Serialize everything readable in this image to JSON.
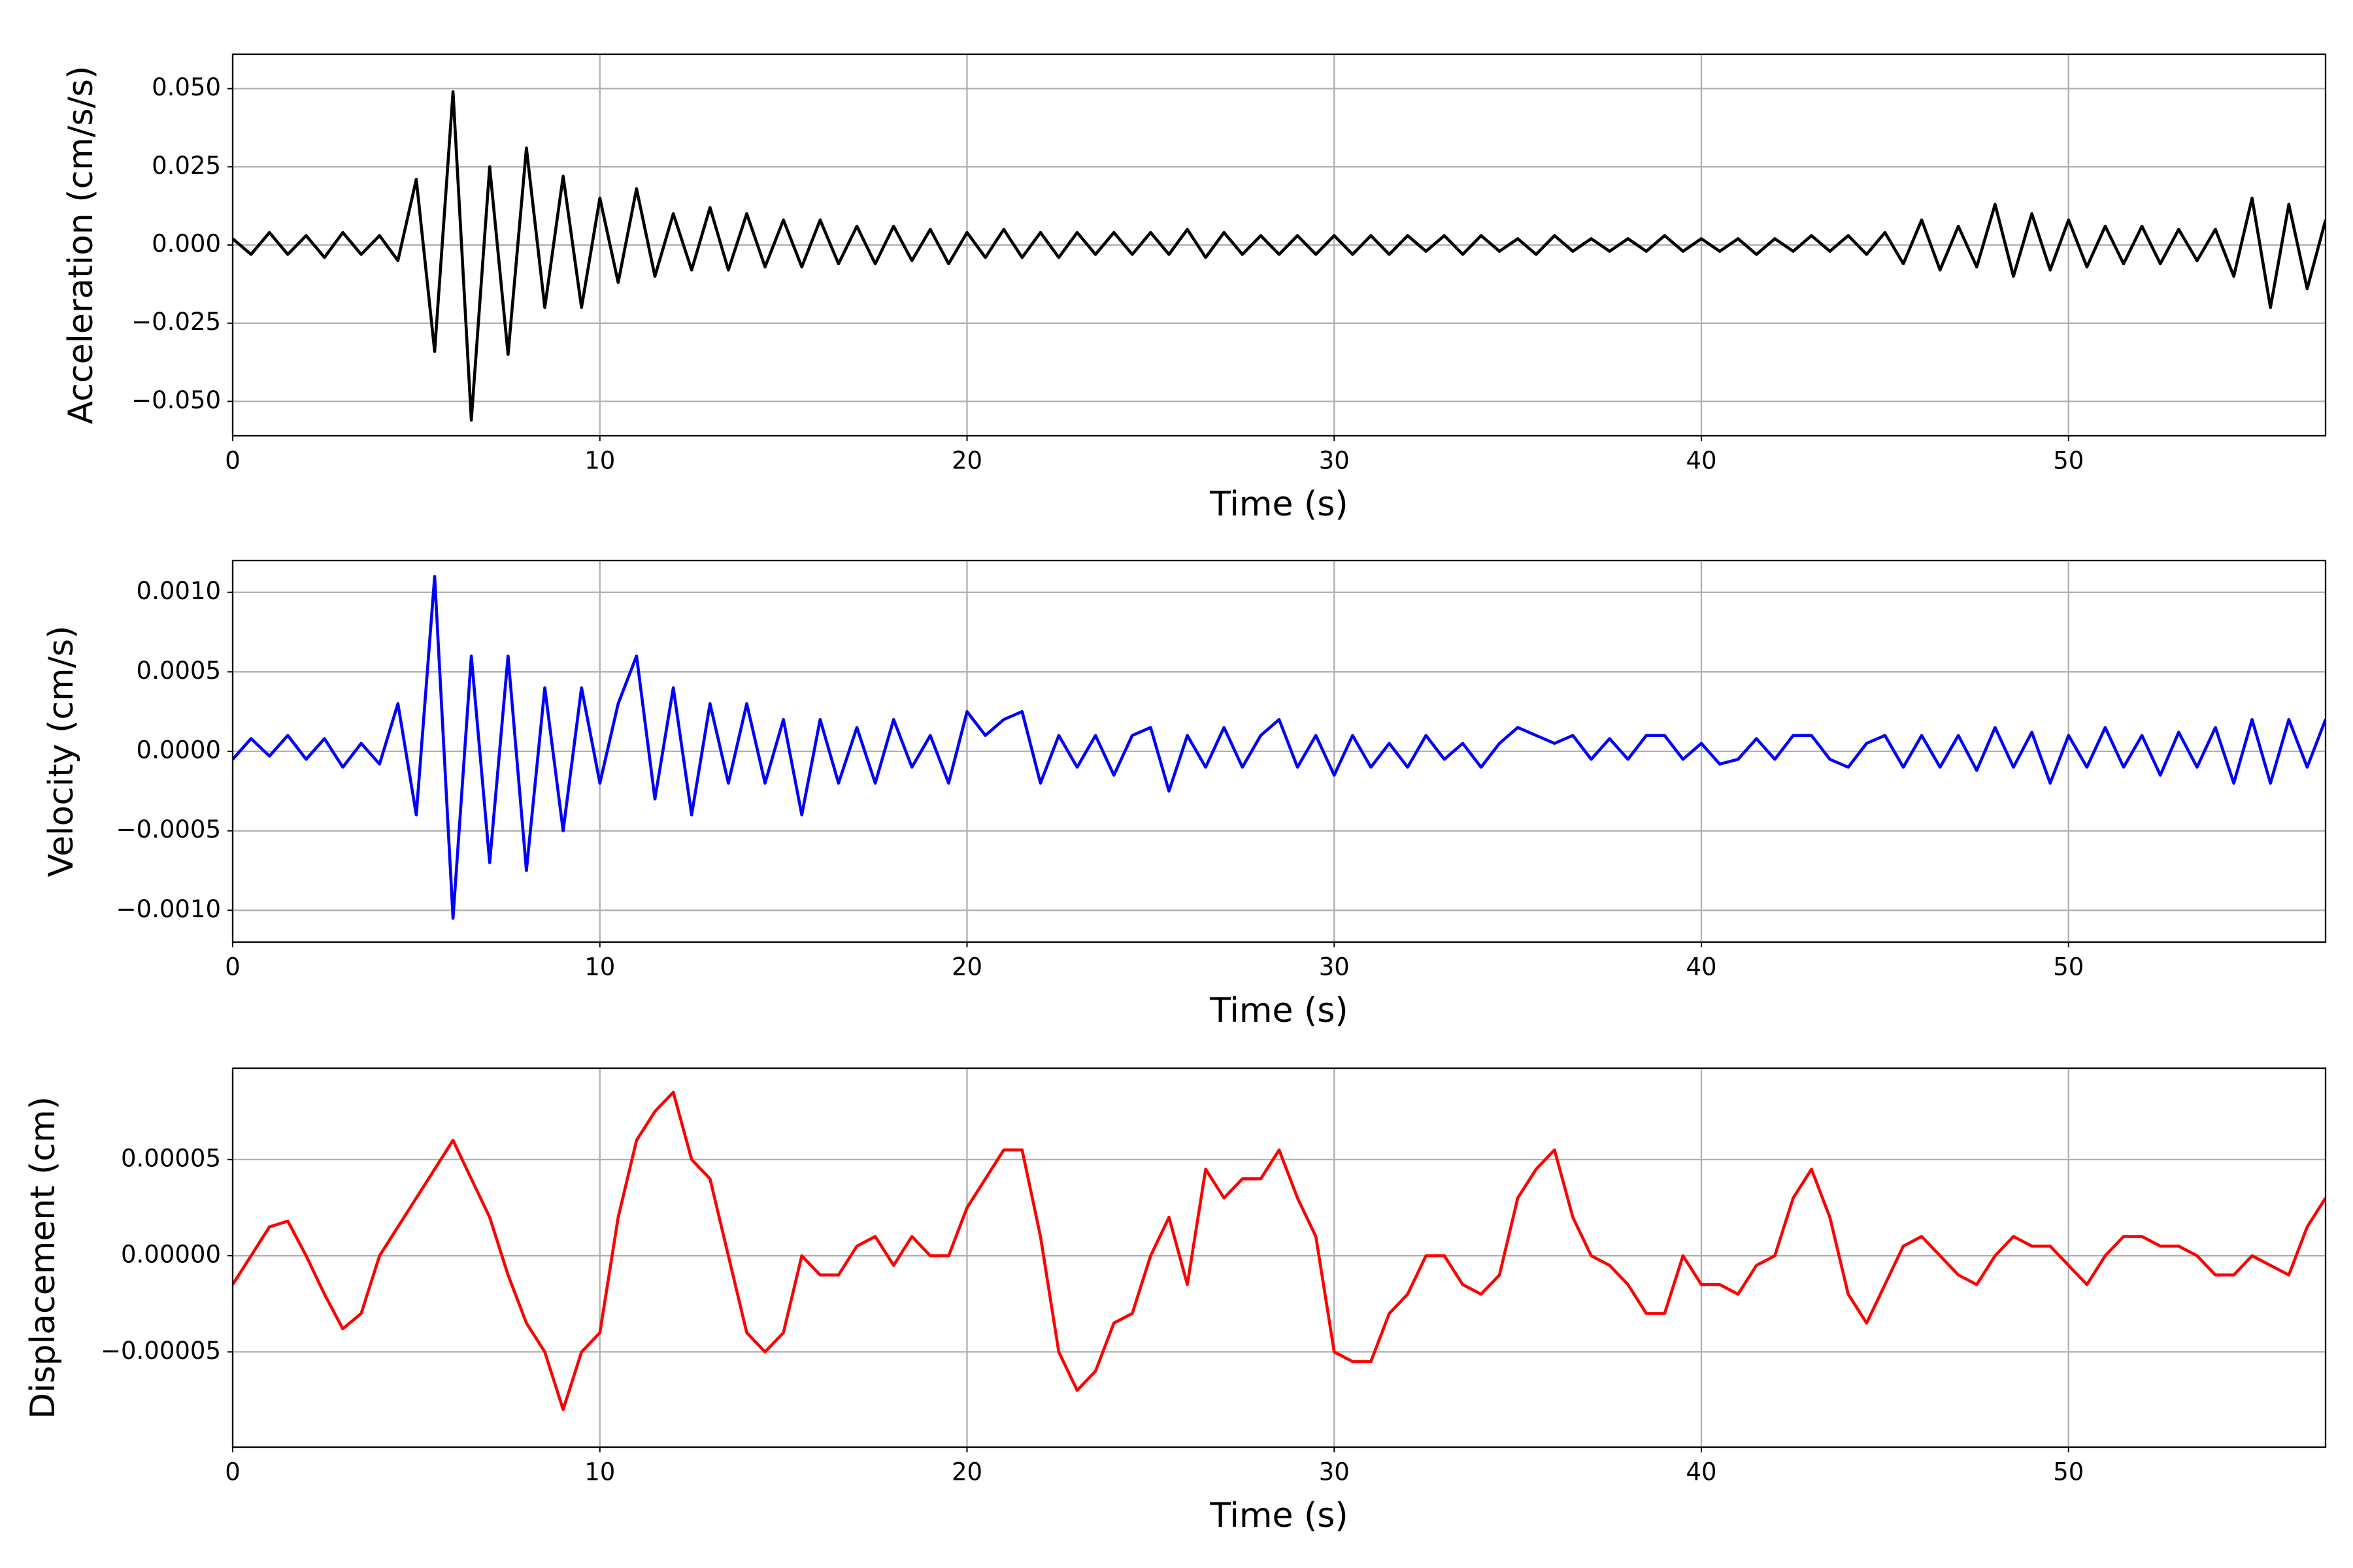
{
  "chart_data": [
    {
      "type": "line",
      "ylabel": "Acceleration (cm/s/s)",
      "xlabel": "Time (s)",
      "color": "#000000",
      "grid": true,
      "xlim": [
        0,
        57
      ],
      "xticks": [
        0,
        10,
        20,
        30,
        40,
        50
      ],
      "ylim": [
        -0.061,
        0.061
      ],
      "yticks": [
        {
          "value": -0.05,
          "label": "−0.050"
        },
        {
          "value": -0.025,
          "label": "−0.025"
        },
        {
          "value": 0,
          "label": "0.000"
        },
        {
          "value": 0.025,
          "label": "0.025"
        },
        {
          "value": 0.05,
          "label": "0.050"
        }
      ],
      "x": [
        0,
        0.5,
        1,
        1.5,
        2,
        2.5,
        3,
        3.5,
        4,
        4.5,
        5,
        5.5,
        6,
        6.5,
        7,
        7.5,
        8,
        8.5,
        9,
        9.5,
        10,
        10.5,
        11,
        11.5,
        12,
        12.5,
        13,
        13.5,
        14,
        14.5,
        15,
        15.5,
        16,
        16.5,
        17,
        17.5,
        18,
        18.5,
        19,
        19.5,
        20,
        20.5,
        21,
        21.5,
        22,
        22.5,
        23,
        23.5,
        24,
        24.5,
        25,
        25.5,
        26,
        26.5,
        27,
        27.5,
        28,
        28.5,
        29,
        29.5,
        30,
        30.5,
        31,
        31.5,
        32,
        32.5,
        33,
        33.5,
        34,
        34.5,
        35,
        35.5,
        36,
        36.5,
        37,
        37.5,
        38,
        38.5,
        39,
        39.5,
        40,
        40.5,
        41,
        41.5,
        42,
        42.5,
        43,
        43.5,
        44,
        44.5,
        45,
        45.5,
        46,
        46.5,
        47,
        47.5,
        48,
        48.5,
        49,
        49.5,
        50,
        50.5,
        51,
        51.5,
        52,
        52.5,
        53,
        53.5,
        54,
        54.5,
        55,
        55.5,
        56,
        56.5,
        57
      ],
      "values": [
        0.002,
        -0.003,
        0.004,
        -0.003,
        0.003,
        -0.004,
        0.004,
        -0.003,
        0.003,
        -0.005,
        0.021,
        -0.034,
        0.049,
        -0.056,
        0.025,
        -0.035,
        0.031,
        -0.02,
        0.022,
        -0.02,
        0.015,
        -0.012,
        0.018,
        -0.01,
        0.01,
        -0.008,
        0.012,
        -0.008,
        0.01,
        -0.007,
        0.008,
        -0.007,
        0.008,
        -0.006,
        0.006,
        -0.006,
        0.006,
        -0.005,
        0.005,
        -0.006,
        0.004,
        -0.004,
        0.005,
        -0.004,
        0.004,
        -0.004,
        0.004,
        -0.003,
        0.004,
        -0.003,
        0.004,
        -0.003,
        0.005,
        -0.004,
        0.004,
        -0.003,
        0.003,
        -0.003,
        0.003,
        -0.003,
        0.003,
        -0.003,
        0.003,
        -0.003,
        0.003,
        -0.002,
        0.003,
        -0.003,
        0.003,
        -0.002,
        0.002,
        -0.003,
        0.003,
        -0.002,
        0.002,
        -0.002,
        0.002,
        -0.002,
        0.003,
        -0.002,
        0.002,
        -0.002,
        0.002,
        -0.003,
        0.002,
        -0.002,
        0.003,
        -0.002,
        0.003,
        -0.003,
        0.004,
        -0.006,
        0.008,
        -0.008,
        0.006,
        -0.007,
        0.013,
        -0.01,
        0.01,
        -0.008,
        0.008,
        -0.007,
        0.006,
        -0.006,
        0.006,
        -0.006,
        0.005,
        -0.005,
        0.005,
        -0.01,
        0.015,
        -0.02,
        0.013,
        -0.014,
        0.008
      ]
    },
    {
      "type": "line",
      "ylabel": "Velocity (cm/s)",
      "xlabel": "Time (s)",
      "color": "#0000ff",
      "grid": true,
      "xlim": [
        0,
        57
      ],
      "xticks": [
        0,
        10,
        20,
        30,
        40,
        50
      ],
      "ylim": [
        -0.0012,
        0.0012
      ],
      "yticks": [
        {
          "value": -0.001,
          "label": "−0.0010"
        },
        {
          "value": -0.0005,
          "label": "−0.0005"
        },
        {
          "value": 0,
          "label": "0.0000"
        },
        {
          "value": 0.0005,
          "label": "0.0005"
        },
        {
          "value": 0.001,
          "label": "0.0010"
        }
      ],
      "x": [
        0,
        0.5,
        1,
        1.5,
        2,
        2.5,
        3,
        3.5,
        4,
        4.5,
        5,
        5.5,
        6,
        6.5,
        7,
        7.5,
        8,
        8.5,
        9,
        9.5,
        10,
        10.5,
        11,
        11.5,
        12,
        12.5,
        13,
        13.5,
        14,
        14.5,
        15,
        15.5,
        16,
        16.5,
        17,
        17.5,
        18,
        18.5,
        19,
        19.5,
        20,
        20.5,
        21,
        21.5,
        22,
        22.5,
        23,
        23.5,
        24,
        24.5,
        25,
        25.5,
        26,
        26.5,
        27,
        27.5,
        28,
        28.5,
        29,
        29.5,
        30,
        30.5,
        31,
        31.5,
        32,
        32.5,
        33,
        33.5,
        34,
        34.5,
        35,
        35.5,
        36,
        36.5,
        37,
        37.5,
        38,
        38.5,
        39,
        39.5,
        40,
        40.5,
        41,
        41.5,
        42,
        42.5,
        43,
        43.5,
        44,
        44.5,
        45,
        45.5,
        46,
        46.5,
        47,
        47.5,
        48,
        48.5,
        49,
        49.5,
        50,
        50.5,
        51,
        51.5,
        52,
        52.5,
        53,
        53.5,
        54,
        54.5,
        55,
        55.5,
        56,
        56.5,
        57
      ],
      "values": [
        -5e-05,
        8e-05,
        -3e-05,
        0.0001,
        -5e-05,
        8e-05,
        -0.0001,
        5e-05,
        -8e-05,
        0.0003,
        -0.0004,
        0.0011,
        -0.00105,
        0.0006,
        -0.0007,
        0.0006,
        -0.00075,
        0.0004,
        -0.0005,
        0.0004,
        -0.0002,
        0.0003,
        0.0006,
        -0.0003,
        0.0004,
        -0.0004,
        0.0003,
        -0.0002,
        0.0003,
        -0.0002,
        0.0002,
        -0.0004,
        0.0002,
        -0.0002,
        0.00015,
        -0.0002,
        0.0002,
        -0.0001,
        0.0001,
        -0.0002,
        0.00025,
        0.0001,
        0.0002,
        0.00025,
        -0.0002,
        0.0001,
        -0.0001,
        0.0001,
        -0.00015,
        0.0001,
        0.00015,
        -0.00025,
        0.0001,
        -0.0001,
        0.00015,
        -0.0001,
        0.0001,
        0.0002,
        -0.0001,
        0.0001,
        -0.00015,
        0.0001,
        -0.0001,
        5e-05,
        -0.0001,
        0.0001,
        -5e-05,
        5e-05,
        -0.0001,
        5e-05,
        0.00015,
        0.0001,
        5e-05,
        0.0001,
        -5e-05,
        8e-05,
        -5e-05,
        0.0001,
        0.0001,
        -5e-05,
        5e-05,
        -8e-05,
        -5e-05,
        8e-05,
        -5e-05,
        0.0001,
        0.0001,
        -5e-05,
        -0.0001,
        5e-05,
        0.0001,
        -0.0001,
        0.0001,
        -0.0001,
        0.0001,
        -0.00012,
        0.00015,
        -0.0001,
        0.00012,
        -0.0002,
        0.0001,
        -0.0001,
        0.00015,
        -0.0001,
        0.0001,
        -0.00015,
        0.00012,
        -0.0001,
        0.00015,
        -0.0002,
        0.0002,
        -0.0002,
        0.0002,
        -0.0001,
        0.0002
      ]
    },
    {
      "type": "line",
      "ylabel": "Displacement (cm)",
      "xlabel": "Time (s)",
      "color": "#ff0000",
      "grid": true,
      "xlim": [
        0,
        57
      ],
      "xticks": [
        0,
        10,
        20,
        30,
        40,
        50
      ],
      "ylim": [
        -9.95e-05,
        9.75e-05
      ],
      "yticks": [
        {
          "value": -5e-05,
          "label": "−0.00005"
        },
        {
          "value": 0,
          "label": "0.00000"
        },
        {
          "value": 5e-05,
          "label": "0.00005"
        }
      ],
      "x": [
        0,
        0.5,
        1,
        1.5,
        2,
        2.5,
        3,
        3.5,
        4,
        4.5,
        5,
        5.5,
        6,
        6.5,
        7,
        7.5,
        8,
        8.5,
        9,
        9.5,
        10,
        10.5,
        11,
        11.5,
        12,
        12.5,
        13,
        13.5,
        14,
        14.5,
        15,
        15.5,
        16,
        16.5,
        17,
        17.5,
        18,
        18.5,
        19,
        19.5,
        20,
        20.5,
        21,
        21.5,
        22,
        22.5,
        23,
        23.5,
        24,
        24.5,
        25,
        25.5,
        26,
        26.5,
        27,
        27.5,
        28,
        28.5,
        29,
        29.5,
        30,
        30.5,
        31,
        31.5,
        32,
        32.5,
        33,
        33.5,
        34,
        34.5,
        35,
        35.5,
        36,
        36.5,
        37,
        37.5,
        38,
        38.5,
        39,
        39.5,
        40,
        40.5,
        41,
        41.5,
        42,
        42.5,
        43,
        43.5,
        44,
        44.5,
        45,
        45.5,
        46,
        46.5,
        47,
        47.5,
        48,
        48.5,
        49,
        49.5,
        50,
        50.5,
        51,
        51.5,
        52,
        52.5,
        53,
        53.5,
        54,
        54.5,
        55,
        55.5,
        56,
        56.5,
        57
      ],
      "values": [
        -1.5e-05,
        0,
        1.5e-05,
        1.8e-05,
        0,
        -2e-05,
        -3.8e-05,
        -3e-05,
        0,
        1.5e-05,
        3e-05,
        4.5e-05,
        6e-05,
        4e-05,
        2e-05,
        -1e-05,
        -3.5e-05,
        -5e-05,
        -8e-05,
        -5e-05,
        -4e-05,
        2e-05,
        6e-05,
        7.5e-05,
        8.5e-05,
        5e-05,
        4e-05,
        0,
        -4e-05,
        -5e-05,
        -4e-05,
        0,
        -1e-05,
        -1e-05,
        5e-06,
        1e-05,
        -5e-06,
        1e-05,
        0,
        0,
        2.5e-05,
        4e-05,
        5.5e-05,
        5.5e-05,
        1e-05,
        -5e-05,
        -7e-05,
        -6e-05,
        -3.5e-05,
        -3e-05,
        0,
        2e-05,
        -1.5e-05,
        4.5e-05,
        3e-05,
        4e-05,
        4e-05,
        5.5e-05,
        3e-05,
        1e-05,
        -5e-05,
        -5.5e-05,
        -5.5e-05,
        -3e-05,
        -2e-05,
        0,
        0,
        -1.5e-05,
        -2e-05,
        -1e-05,
        3e-05,
        4.5e-05,
        5.5e-05,
        2e-05,
        0,
        -5e-06,
        -1.5e-05,
        -3e-05,
        -3e-05,
        0,
        -1.5e-05,
        -1.5e-05,
        -2e-05,
        -5e-06,
        0,
        3e-05,
        4.5e-05,
        2e-05,
        -2e-05,
        -3.5e-05,
        -1.5e-05,
        5e-06,
        1e-05,
        0,
        -1e-05,
        -1.5e-05,
        0,
        1e-05,
        5e-06,
        5e-06,
        -5e-06,
        -1.5e-05,
        0,
        1e-05,
        1e-05,
        5e-06,
        5e-06,
        0,
        -1e-05,
        -1e-05,
        0,
        -5e-06,
        -1e-05,
        1.5e-05,
        3e-05
      ]
    }
  ]
}
